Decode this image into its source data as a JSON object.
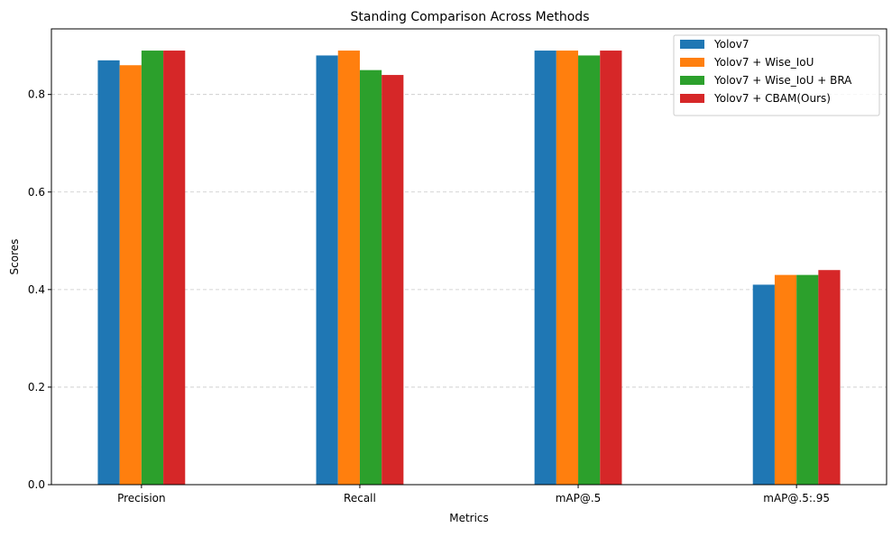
{
  "chart_data": {
    "type": "bar",
    "title": "Standing Comparison Across Methods",
    "xlabel": "Metrics",
    "ylabel": "Scores",
    "categories": [
      "Precision",
      "Recall",
      "mAP@.5",
      "mAP@.5:.95"
    ],
    "series": [
      {
        "name": "Yolov7",
        "color": "#1f77b4",
        "values": [
          0.87,
          0.88,
          0.89,
          0.41
        ]
      },
      {
        "name": "Yolov7 + Wise_IoU",
        "color": "#ff7f0e",
        "values": [
          0.86,
          0.89,
          0.89,
          0.43
        ]
      },
      {
        "name": "Yolov7 + Wise_IoU + BRA",
        "color": "#2ca02c",
        "values": [
          0.89,
          0.85,
          0.88,
          0.43
        ]
      },
      {
        "name": "Yolov7 + CBAM(Ours)",
        "color": "#d62728",
        "values": [
          0.89,
          0.84,
          0.89,
          0.44
        ]
      }
    ],
    "ylim": [
      0,
      0.9345
    ],
    "yticks": [
      "0.0",
      "0.2",
      "0.4",
      "0.6",
      "0.8"
    ],
    "grid": "y-axis dashed",
    "legend_position": "top-right"
  }
}
